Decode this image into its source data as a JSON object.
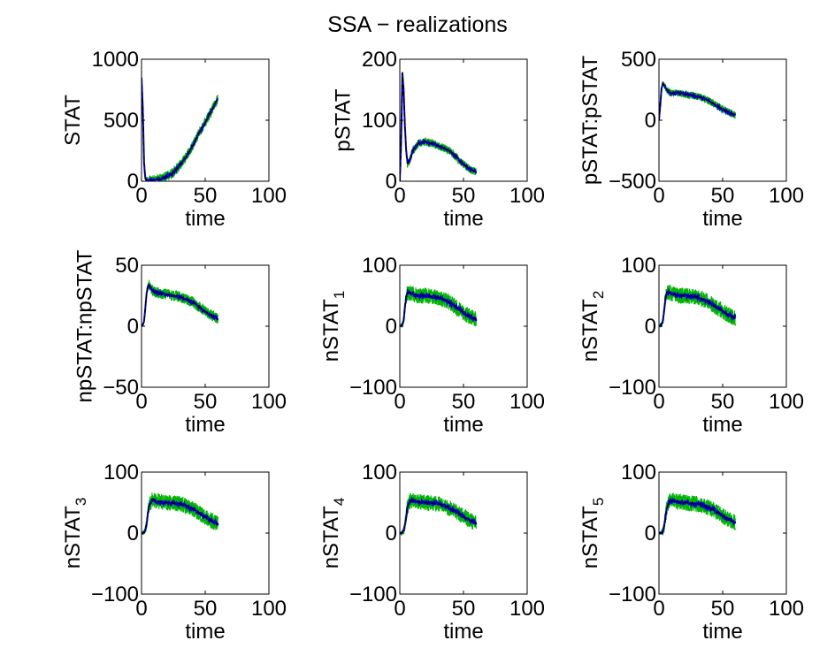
{
  "title": "SSA − realizations",
  "colors": {
    "band": "#00b400",
    "realization": "#0000cc",
    "mean": "#000000",
    "axes": "#000000"
  },
  "chart_data": [
    {
      "type": "line",
      "ylabel": "STAT",
      "ylabel_sub": "",
      "xlabel": "time",
      "xlim": [
        0,
        100
      ],
      "ylim": [
        0,
        1000
      ],
      "xticks": [
        "0",
        "50",
        "100"
      ],
      "yticks": [
        "0",
        "500",
        "1000"
      ],
      "t": [
        0,
        1,
        2,
        3,
        5,
        8,
        10,
        15,
        20,
        25,
        30,
        35,
        40,
        45,
        50,
        55,
        60
      ],
      "mean": [
        850,
        600,
        150,
        20,
        5,
        8,
        10,
        20,
        40,
        70,
        130,
        200,
        290,
        390,
        480,
        580,
        680
      ],
      "noise": 14
    },
    {
      "type": "line",
      "ylabel": "pSTAT",
      "ylabel_sub": "",
      "xlabel": "time",
      "xlim": [
        0,
        100
      ],
      "ylim": [
        0,
        200
      ],
      "xticks": [
        "0",
        "50",
        "100"
      ],
      "yticks": [
        "0",
        "100",
        "200"
      ],
      "t": [
        0,
        1,
        2,
        3,
        4,
        5,
        6,
        8,
        10,
        15,
        20,
        25,
        30,
        35,
        40,
        45,
        50,
        55,
        60
      ],
      "mean": [
        0,
        60,
        178,
        150,
        90,
        50,
        30,
        35,
        50,
        63,
        65,
        62,
        58,
        54,
        48,
        38,
        28,
        20,
        15
      ],
      "noise": 11
    },
    {
      "type": "line",
      "ylabel": "pSTAT:pSTAT",
      "ylabel_sub": "",
      "xlabel": "time",
      "xlim": [
        0,
        100
      ],
      "ylim": [
        -500,
        500
      ],
      "xticks": [
        "0",
        "50",
        "100"
      ],
      "yticks": [
        "−500",
        "0",
        "500"
      ],
      "t": [
        0,
        1,
        2,
        3,
        4,
        5,
        6,
        8,
        10,
        15,
        20,
        25,
        30,
        35,
        40,
        45,
        50,
        55,
        60
      ],
      "mean": [
        0,
        120,
        260,
        300,
        290,
        270,
        250,
        230,
        220,
        225,
        215,
        205,
        195,
        180,
        155,
        120,
        90,
        65,
        40
      ],
      "noise": 10
    },
    {
      "type": "line",
      "ylabel": "npSTAT:npSTAT",
      "ylabel_sub": "",
      "xlabel": "time",
      "xlim": [
        0,
        100
      ],
      "ylim": [
        -50,
        50
      ],
      "xticks": [
        "0",
        "50",
        "100"
      ],
      "yticks": [
        "−50",
        "0",
        "50"
      ],
      "t": [
        0,
        1,
        2,
        3,
        4,
        5,
        6,
        8,
        10,
        15,
        20,
        25,
        30,
        35,
        40,
        45,
        50,
        55,
        60
      ],
      "mean": [
        0,
        1,
        4,
        15,
        27,
        33,
        34,
        30,
        28,
        27,
        26,
        25,
        24,
        22,
        20,
        16,
        12,
        9,
        6
      ],
      "noise": 9
    },
    {
      "type": "line",
      "ylabel": "nSTAT",
      "ylabel_sub": "1",
      "xlabel": "time",
      "xlim": [
        0,
        100
      ],
      "ylim": [
        -100,
        100
      ],
      "xticks": [
        "0",
        "50",
        "100"
      ],
      "yticks": [
        "−100",
        "0",
        "100"
      ],
      "t": [
        0,
        1,
        2,
        3,
        4,
        5,
        6,
        8,
        10,
        15,
        20,
        25,
        30,
        35,
        40,
        45,
        50,
        55,
        60
      ],
      "mean": [
        0,
        1,
        3,
        10,
        30,
        48,
        55,
        55,
        52,
        50,
        50,
        49,
        47,
        43,
        38,
        30,
        22,
        16,
        11
      ],
      "noise": 13
    },
    {
      "type": "line",
      "ylabel": "nSTAT",
      "ylabel_sub": "2",
      "xlabel": "time",
      "xlim": [
        0,
        100
      ],
      "ylim": [
        -100,
        100
      ],
      "xticks": [
        "0",
        "50",
        "100"
      ],
      "yticks": [
        "−100",
        "0",
        "100"
      ],
      "t": [
        0,
        1,
        2,
        3,
        4,
        5,
        6,
        8,
        10,
        15,
        20,
        25,
        30,
        35,
        40,
        45,
        50,
        55,
        60
      ],
      "mean": [
        0,
        1,
        3,
        8,
        25,
        45,
        55,
        56,
        53,
        50,
        50,
        49,
        48,
        44,
        38,
        31,
        24,
        18,
        13
      ],
      "noise": 13
    },
    {
      "type": "line",
      "ylabel": "nSTAT",
      "ylabel_sub": "3",
      "xlabel": "time",
      "xlim": [
        0,
        100
      ],
      "ylim": [
        -100,
        100
      ],
      "xticks": [
        "0",
        "50",
        "100"
      ],
      "yticks": [
        "−100",
        "0",
        "100"
      ],
      "t": [
        0,
        1,
        2,
        3,
        4,
        5,
        6,
        8,
        10,
        15,
        20,
        25,
        30,
        35,
        40,
        45,
        50,
        55,
        60
      ],
      "mean": [
        0,
        0,
        2,
        5,
        15,
        32,
        45,
        55,
        54,
        51,
        50,
        49,
        48,
        45,
        40,
        33,
        26,
        20,
        15
      ],
      "noise": 13
    },
    {
      "type": "line",
      "ylabel": "nSTAT",
      "ylabel_sub": "4",
      "xlabel": "time",
      "xlim": [
        0,
        100
      ],
      "ylim": [
        -100,
        100
      ],
      "xticks": [
        "0",
        "50",
        "100"
      ],
      "yticks": [
        "−100",
        "0",
        "100"
      ],
      "t": [
        0,
        1,
        2,
        3,
        4,
        5,
        6,
        8,
        10,
        15,
        20,
        25,
        30,
        35,
        40,
        45,
        50,
        55,
        60
      ],
      "mean": [
        0,
        0,
        2,
        4,
        12,
        28,
        42,
        53,
        53,
        51,
        50,
        49,
        48,
        45,
        40,
        34,
        27,
        21,
        16
      ],
      "noise": 13
    },
    {
      "type": "line",
      "ylabel": "nSTAT",
      "ylabel_sub": "5",
      "xlabel": "time",
      "xlim": [
        0,
        100
      ],
      "ylim": [
        -100,
        100
      ],
      "xticks": [
        "0",
        "50",
        "100"
      ],
      "yticks": [
        "−100",
        "0",
        "100"
      ],
      "t": [
        0,
        1,
        2,
        3,
        4,
        5,
        6,
        8,
        10,
        15,
        20,
        25,
        30,
        35,
        40,
        45,
        50,
        55,
        60
      ],
      "mean": [
        0,
        0,
        1,
        3,
        10,
        25,
        40,
        52,
        53,
        51,
        50,
        49,
        48,
        45,
        41,
        35,
        28,
        22,
        17
      ],
      "noise": 13
    }
  ]
}
